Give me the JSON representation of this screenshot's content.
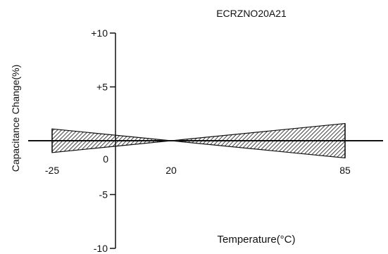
{
  "chart_data": {
    "type": "area",
    "title": "ECRZNO20A21",
    "xlabel": "Temperature(°C)",
    "ylabel": "Capacitance Change(%)",
    "x_tick_labels": [
      "-25",
      "20",
      "85"
    ],
    "y_tick_labels": [
      "+10",
      "+5",
      "0",
      "-5",
      "-10"
    ],
    "x_ticks": [
      -25,
      20,
      85
    ],
    "y_ticks": [
      10,
      5,
      0,
      -5,
      -10
    ],
    "ylim": [
      -10,
      10
    ],
    "grid": false,
    "legend": "none",
    "series": [
      {
        "x": [
          -25,
          20,
          85
        ],
        "upper": [
          1.1,
          0.0,
          1.6
        ],
        "lower": [
          -1.1,
          0.0,
          -1.6
        ],
        "fill": "hatched"
      }
    ]
  }
}
